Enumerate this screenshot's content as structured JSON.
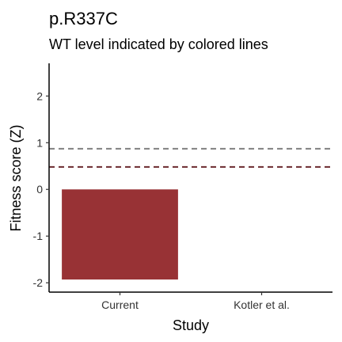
{
  "chart_data": {
    "type": "bar",
    "title": "p.R337C",
    "subtitle": "WT level indicated by colored lines",
    "xlabel": "Study",
    "ylabel": "Fitness score (Z)",
    "categories": [
      "Current",
      "Kotler et al."
    ],
    "values": [
      -1.93,
      null
    ],
    "ylim": [
      -2.2,
      2.7
    ],
    "yticks": [
      -2,
      -1,
      0,
      1,
      2
    ],
    "grid": false,
    "bar_color": "#983235",
    "wt_lines": [
      {
        "value": 0.87,
        "color": "#808080"
      },
      {
        "value": 0.48,
        "color": "#6b2a2e"
      }
    ]
  }
}
